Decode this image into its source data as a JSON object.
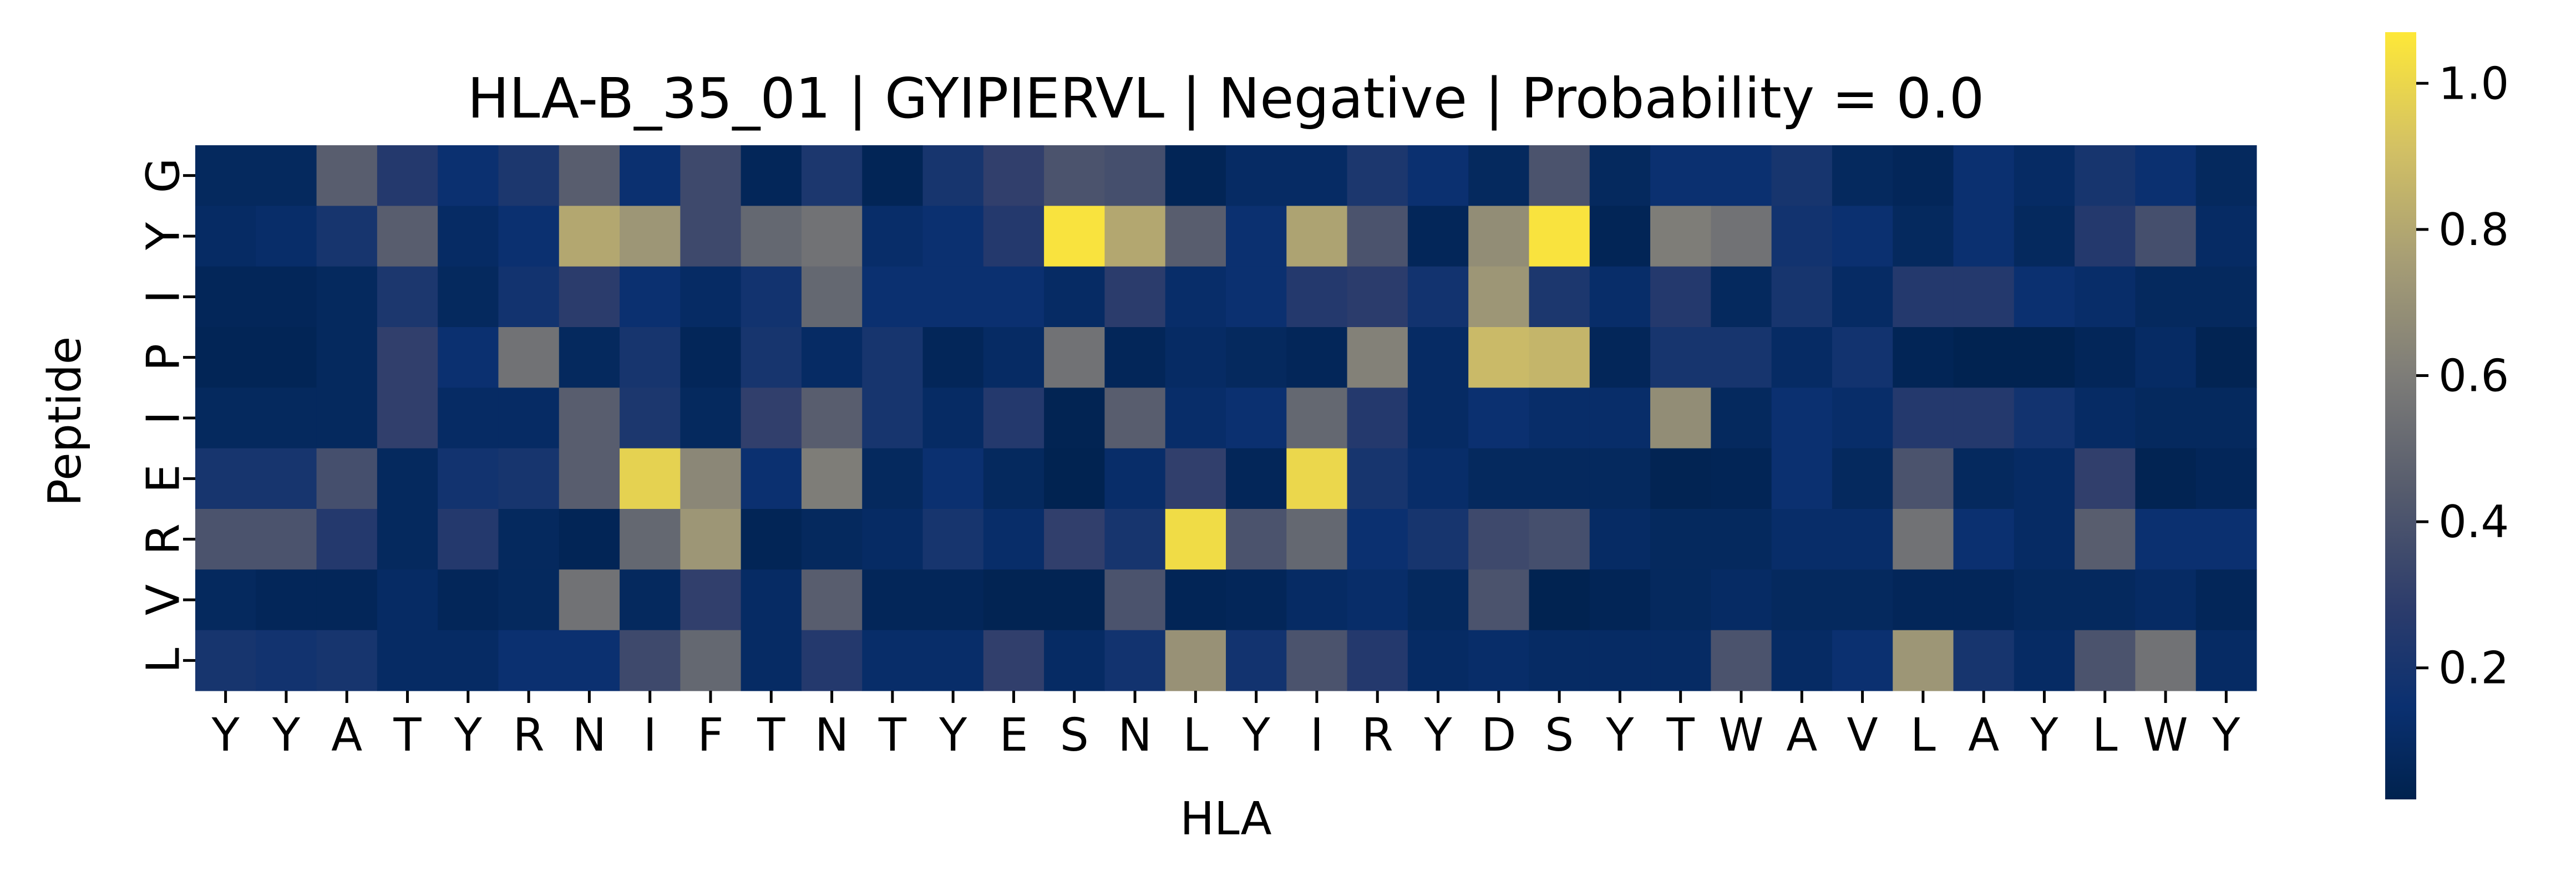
{
  "chart_data": {
    "type": "heatmap",
    "title": "HLA-B_35_01 | GYIPIERVL | Negative | Probability = 0.0",
    "xlabel": "HLA",
    "ylabel": "Peptide",
    "x_categories": [
      "Y",
      "Y",
      "A",
      "T",
      "Y",
      "R",
      "N",
      "I",
      "F",
      "T",
      "N",
      "T",
      "Y",
      "E",
      "S",
      "N",
      "L",
      "Y",
      "I",
      "R",
      "Y",
      "D",
      "S",
      "Y",
      "T",
      "W",
      "A",
      "V",
      "L",
      "A",
      "Y",
      "L",
      "W",
      "Y"
    ],
    "y_categories": [
      "G",
      "Y",
      "I",
      "P",
      "I",
      "E",
      "R",
      "V",
      "L"
    ],
    "colormap": "cividis",
    "vmin": 0.02,
    "vmax": 1.07,
    "colorbar_ticks": [
      "0.2",
      "0.4",
      "0.6",
      "0.8",
      "1.0"
    ],
    "colorbar_tick_values": [
      0.2,
      0.4,
      0.6,
      0.8,
      1.0
    ],
    "values": [
      [
        0.08,
        0.08,
        0.45,
        0.25,
        0.15,
        0.22,
        0.45,
        0.15,
        0.35,
        0.06,
        0.22,
        0.05,
        0.2,
        0.3,
        0.4,
        0.38,
        0.05,
        0.1,
        0.1,
        0.22,
        0.15,
        0.08,
        0.4,
        0.08,
        0.15,
        0.15,
        0.2,
        0.08,
        0.06,
        0.15,
        0.1,
        0.2,
        0.15,
        0.08
      ],
      [
        0.1,
        0.12,
        0.2,
        0.45,
        0.1,
        0.15,
        0.8,
        0.72,
        0.35,
        0.5,
        0.55,
        0.12,
        0.15,
        0.25,
        1.05,
        0.8,
        0.45,
        0.15,
        0.78,
        0.4,
        0.06,
        0.68,
        1.05,
        0.05,
        0.6,
        0.55,
        0.18,
        0.15,
        0.08,
        0.15,
        0.08,
        0.25,
        0.38,
        0.1
      ],
      [
        0.06,
        0.06,
        0.08,
        0.22,
        0.08,
        0.18,
        0.28,
        0.15,
        0.1,
        0.18,
        0.5,
        0.15,
        0.15,
        0.15,
        0.1,
        0.28,
        0.12,
        0.15,
        0.25,
        0.28,
        0.18,
        0.72,
        0.22,
        0.12,
        0.25,
        0.08,
        0.2,
        0.1,
        0.25,
        0.25,
        0.15,
        0.12,
        0.08,
        0.08
      ],
      [
        0.05,
        0.05,
        0.08,
        0.3,
        0.15,
        0.55,
        0.08,
        0.2,
        0.06,
        0.2,
        0.1,
        0.2,
        0.06,
        0.1,
        0.55,
        0.06,
        0.1,
        0.08,
        0.06,
        0.62,
        0.1,
        0.88,
        0.86,
        0.06,
        0.2,
        0.2,
        0.1,
        0.18,
        0.05,
        0.03,
        0.03,
        0.06,
        0.1,
        0.04
      ],
      [
        0.08,
        0.08,
        0.08,
        0.3,
        0.1,
        0.1,
        0.45,
        0.22,
        0.08,
        0.3,
        0.45,
        0.2,
        0.1,
        0.25,
        0.04,
        0.45,
        0.12,
        0.15,
        0.5,
        0.25,
        0.1,
        0.15,
        0.12,
        0.12,
        0.68,
        0.08,
        0.15,
        0.12,
        0.25,
        0.25,
        0.18,
        0.1,
        0.08,
        0.08
      ],
      [
        0.2,
        0.2,
        0.38,
        0.08,
        0.18,
        0.2,
        0.45,
        0.98,
        0.65,
        0.15,
        0.6,
        0.08,
        0.15,
        0.08,
        0.03,
        0.12,
        0.3,
        0.06,
        1.0,
        0.2,
        0.12,
        0.08,
        0.08,
        0.08,
        0.04,
        0.05,
        0.15,
        0.08,
        0.4,
        0.08,
        0.1,
        0.3,
        0.04,
        0.06
      ],
      [
        0.4,
        0.4,
        0.25,
        0.08,
        0.25,
        0.08,
        0.05,
        0.5,
        0.72,
        0.05,
        0.08,
        0.1,
        0.2,
        0.12,
        0.3,
        0.2,
        1.02,
        0.4,
        0.5,
        0.15,
        0.2,
        0.35,
        0.38,
        0.1,
        0.08,
        0.08,
        0.12,
        0.12,
        0.55,
        0.15,
        0.1,
        0.45,
        0.15,
        0.15
      ],
      [
        0.08,
        0.06,
        0.06,
        0.1,
        0.06,
        0.08,
        0.55,
        0.08,
        0.3,
        0.1,
        0.45,
        0.06,
        0.06,
        0.04,
        0.04,
        0.4,
        0.05,
        0.06,
        0.1,
        0.12,
        0.08,
        0.4,
        0.03,
        0.05,
        0.08,
        0.1,
        0.08,
        0.08,
        0.06,
        0.06,
        0.08,
        0.08,
        0.1,
        0.06
      ],
      [
        0.2,
        0.18,
        0.2,
        0.1,
        0.1,
        0.15,
        0.15,
        0.35,
        0.5,
        0.1,
        0.25,
        0.12,
        0.12,
        0.3,
        0.1,
        0.18,
        0.7,
        0.18,
        0.4,
        0.25,
        0.1,
        0.12,
        0.1,
        0.1,
        0.1,
        0.4,
        0.1,
        0.15,
        0.72,
        0.2,
        0.1,
        0.4,
        0.55,
        0.1
      ]
    ]
  }
}
